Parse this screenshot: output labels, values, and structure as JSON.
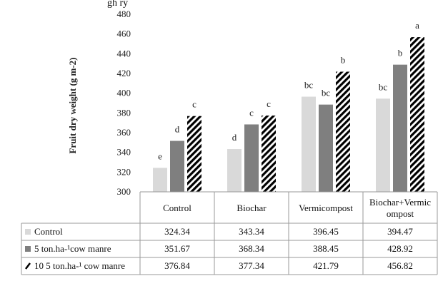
{
  "top_caption": "gh ry",
  "chart_data": {
    "type": "bar",
    "title": "",
    "ylabel": "Fruit dry weight  (g m-2)",
    "xlabel": "",
    "ylim": [
      300,
      480
    ],
    "y_ticks": [
      300,
      320,
      340,
      360,
      380,
      400,
      420,
      440,
      460,
      480
    ],
    "grid": false,
    "legend": "table-left",
    "categories": [
      "Control",
      "Biochar",
      "Vermicompost",
      "Biochar+Vermic ompost"
    ],
    "category_lines": [
      [
        "Control"
      ],
      [
        "Biochar"
      ],
      [
        "Vermicompost"
      ],
      [
        "Biochar+Vermic",
        "ompost"
      ]
    ],
    "series": [
      {
        "name": "Control",
        "values": [
          324.34,
          343.34,
          396.45,
          394.47
        ],
        "letters": [
          "e",
          "d",
          "bc",
          "bc"
        ],
        "color": "#d9d9d9",
        "pattern": "solid"
      },
      {
        "name": "5 ton.ha-¹cow manre",
        "values": [
          351.67,
          368.34,
          388.45,
          428.92
        ],
        "letters": [
          "d",
          "c",
          "bc",
          "b"
        ],
        "color": "#7f7f7f",
        "pattern": "solid"
      },
      {
        "name": "10  5 ton.ha-¹ cow manre",
        "values": [
          376.84,
          377.34,
          421.79,
          456.82
        ],
        "letters": [
          "c",
          "c",
          "b",
          "a"
        ],
        "color": "#000000",
        "pattern": "hatch"
      }
    ],
    "table_values": [
      [
        "324.34",
        "343.34",
        "396.45",
        "394.47"
      ],
      [
        "351.67",
        "368.34",
        "388.45",
        "428.92"
      ],
      [
        "376.84",
        "377.34",
        "421.79",
        "456.82"
      ]
    ]
  }
}
